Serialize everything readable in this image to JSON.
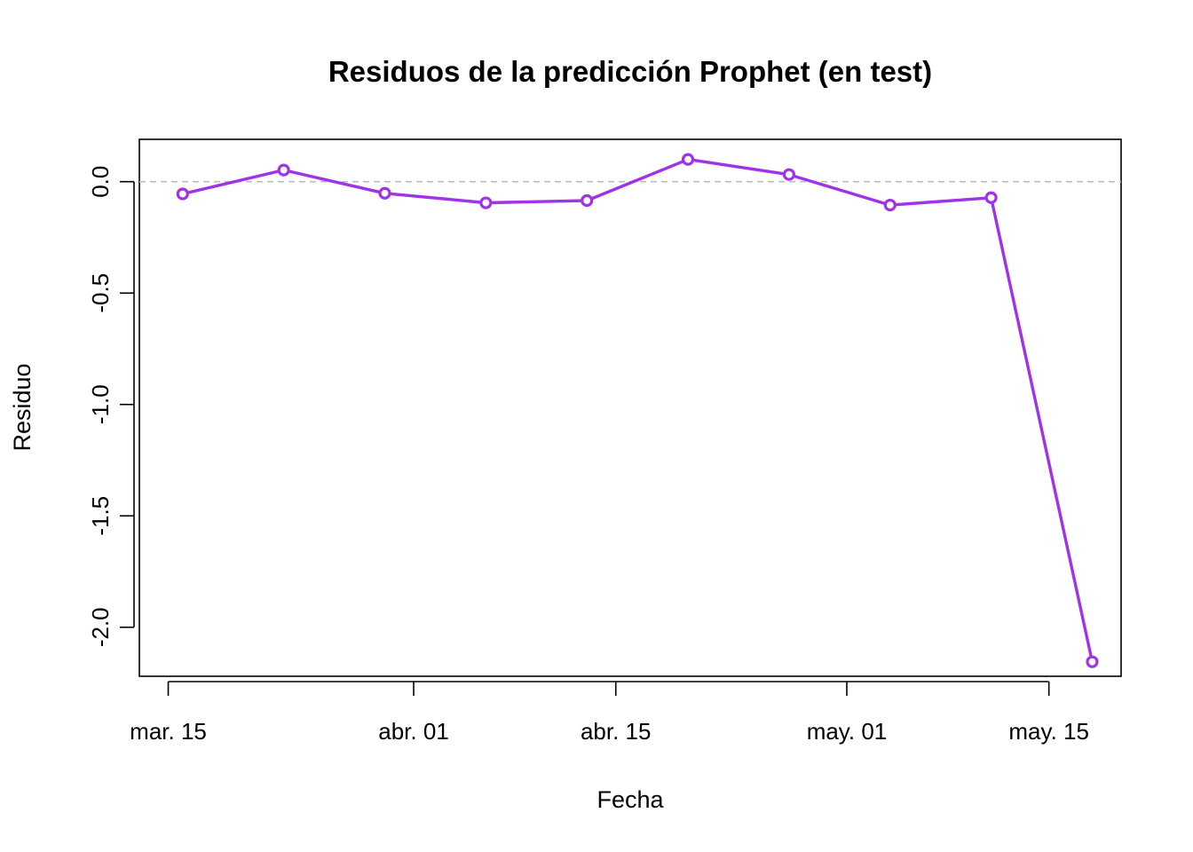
{
  "chart_data": {
    "type": "line",
    "title": "Residuos de la predicción Prophet (en test)",
    "xlabel": "Fecha",
    "ylabel": "Residuo",
    "x_tick_labels": [
      "mar. 15",
      "abr. 01",
      "abr. 15",
      "may. 01",
      "may. 15"
    ],
    "x_tick_dates": [
      "2024-03-15",
      "2024-04-01",
      "2024-04-15",
      "2024-05-01",
      "2024-05-15"
    ],
    "y_tick_labels": [
      "0.0",
      "-0.5",
      "-1.0",
      "-1.5",
      "-2.0"
    ],
    "y_tick_values": [
      0.0,
      -0.5,
      -1.0,
      -1.5,
      -2.0
    ],
    "ylim": [
      -2.22,
      0.19
    ],
    "xlim": [
      "2024-03-13",
      "2024-05-20"
    ],
    "reference_line": 0,
    "grid": false,
    "series": [
      {
        "color": "#a033e8",
        "x": [
          "2024-03-16",
          "2024-03-23",
          "2024-03-30",
          "2024-04-06",
          "2024-04-13",
          "2024-04-20",
          "2024-04-27",
          "2024-05-04",
          "2024-05-11",
          "2024-05-18"
        ],
        "values": [
          -0.055,
          0.052,
          -0.052,
          -0.095,
          -0.085,
          0.1,
          0.032,
          -0.105,
          -0.072,
          -2.155
        ]
      }
    ]
  }
}
